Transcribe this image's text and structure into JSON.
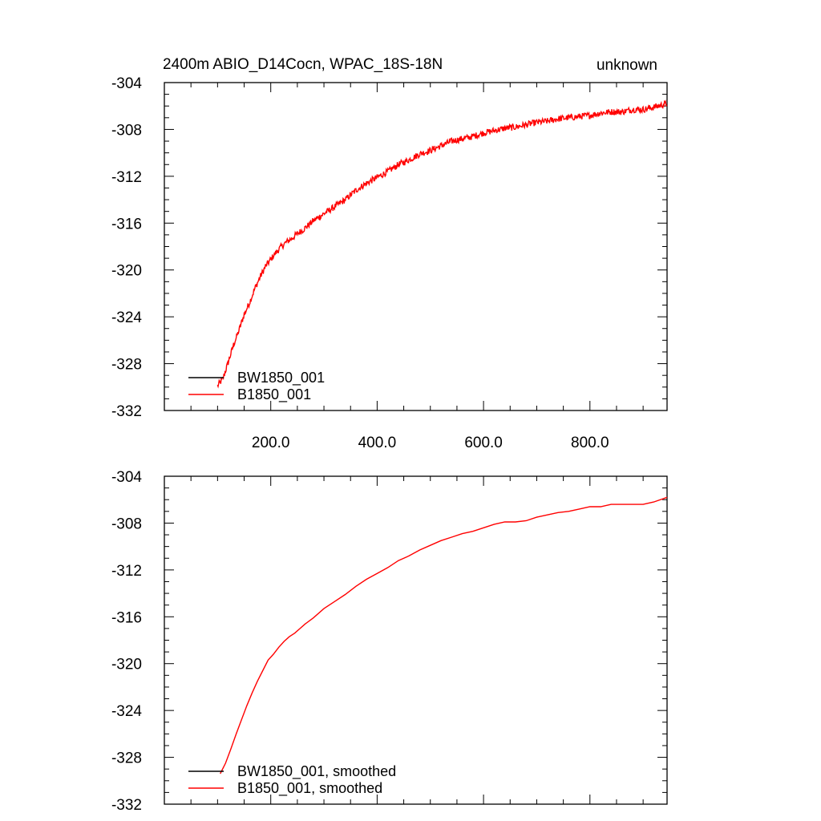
{
  "header": {
    "left_title": "2400m ABIO_D14Cocn, WPAC_18S-18N",
    "right_title": "unknown"
  },
  "colors": {
    "series_black": "#000000",
    "series_red": "#ff0000"
  },
  "chart_data": [
    {
      "type": "line",
      "title": "2400m ABIO_D14Cocn, WPAC_18S-18N",
      "right_label": "unknown",
      "xlim": [
        0,
        945
      ],
      "ylim": [
        -332,
        -304
      ],
      "x_ticks": [
        200,
        400,
        600,
        800
      ],
      "x_tick_labels": [
        "200.0",
        "400.0",
        "600.0",
        "800.0"
      ],
      "y_ticks": [
        -304,
        -308,
        -312,
        -316,
        -320,
        -324,
        -328,
        -332
      ],
      "y_tick_labels": [
        "-304",
        "-308",
        "-312",
        "-316",
        "-320",
        "-324",
        "-328",
        "-332"
      ],
      "legend_position": "bottom-left",
      "noisy": true,
      "series": [
        {
          "name": "BW1850_001",
          "color": "#000000",
          "x": [],
          "y": []
        },
        {
          "name": "B1850_001",
          "color": "#ff0000",
          "x": [
            100,
            110,
            120,
            130,
            140,
            150,
            160,
            170,
            180,
            190,
            200,
            210,
            220,
            230,
            240,
            250,
            260,
            280,
            300,
            320,
            340,
            360,
            380,
            400,
            420,
            440,
            460,
            480,
            500,
            520,
            540,
            560,
            580,
            600,
            620,
            640,
            660,
            680,
            700,
            720,
            740,
            760,
            780,
            800,
            820,
            840,
            860,
            880,
            900,
            920,
            945
          ],
          "y": [
            -329.9,
            -329.3,
            -327.9,
            -326.4,
            -325.2,
            -323.8,
            -322.8,
            -321.6,
            -320.6,
            -319.7,
            -319.1,
            -318.5,
            -318.0,
            -317.6,
            -317.3,
            -316.9,
            -316.6,
            -315.8,
            -315.2,
            -314.6,
            -314.0,
            -313.2,
            -312.6,
            -312.1,
            -311.6,
            -311.0,
            -310.6,
            -310.1,
            -309.8,
            -309.4,
            -309.0,
            -308.8,
            -308.6,
            -308.3,
            -308.1,
            -307.9,
            -307.8,
            -307.6,
            -307.4,
            -307.3,
            -307.1,
            -307.0,
            -306.9,
            -306.8,
            -306.6,
            -306.5,
            -306.5,
            -306.3,
            -306.3,
            -306.1,
            -305.8
          ]
        }
      ]
    },
    {
      "type": "line",
      "xlim": [
        0,
        945
      ],
      "ylim": [
        -332,
        -304
      ],
      "x_ticks": [
        200,
        400,
        600,
        800
      ],
      "x_tick_labels": [],
      "y_ticks": [
        -304,
        -308,
        -312,
        -316,
        -320,
        -324,
        -328,
        -332
      ],
      "y_tick_labels": [
        "-304",
        "-308",
        "-312",
        "-316",
        "-320",
        "-324",
        "-328",
        "-332"
      ],
      "legend_position": "bottom-left",
      "noisy": false,
      "series": [
        {
          "name": "BW1850_001, smoothed",
          "color": "#000000",
          "x": [],
          "y": []
        },
        {
          "name": "B1850_001, smoothed",
          "color": "#ff0000",
          "x": [
            105,
            115,
            125,
            135,
            145,
            155,
            165,
            175,
            185,
            195,
            205,
            215,
            225,
            235,
            245,
            255,
            265,
            280,
            300,
            320,
            340,
            360,
            380,
            400,
            420,
            440,
            460,
            480,
            500,
            520,
            540,
            560,
            580,
            600,
            620,
            640,
            660,
            680,
            700,
            720,
            740,
            760,
            780,
            800,
            820,
            840,
            860,
            880,
            900,
            920,
            945
          ],
          "y": [
            -329.4,
            -328.5,
            -327.3,
            -326.0,
            -324.8,
            -323.6,
            -322.5,
            -321.5,
            -320.6,
            -319.7,
            -319.2,
            -318.6,
            -318.1,
            -317.7,
            -317.4,
            -317.0,
            -316.6,
            -316.1,
            -315.3,
            -314.7,
            -314.1,
            -313.4,
            -312.8,
            -312.3,
            -311.8,
            -311.2,
            -310.8,
            -310.3,
            -309.9,
            -309.5,
            -309.2,
            -308.9,
            -308.7,
            -308.4,
            -308.1,
            -307.9,
            -307.9,
            -307.8,
            -307.5,
            -307.3,
            -307.1,
            -307.0,
            -306.8,
            -306.6,
            -306.6,
            -306.4,
            -306.4,
            -306.4,
            -306.4,
            -306.2,
            -305.8
          ]
        }
      ]
    }
  ]
}
